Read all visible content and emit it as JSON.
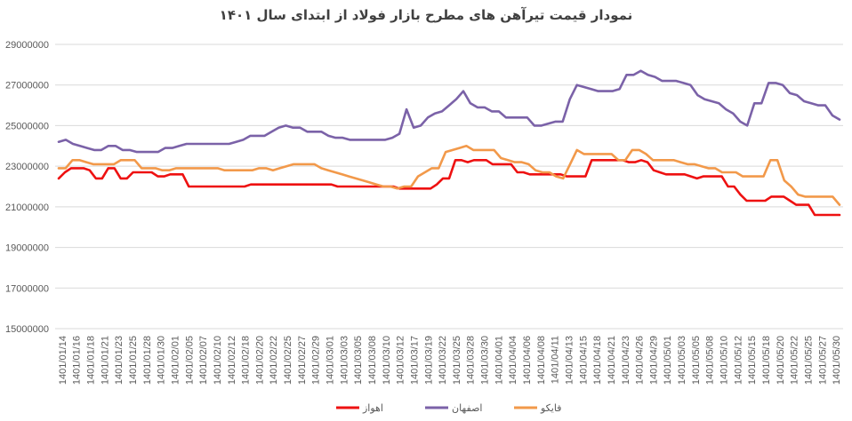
{
  "colors": {
    "ahvaz": "#ee1111",
    "esfahan": "#7b62a8",
    "faiko": "#f2994a",
    "grid": "#d9d9d9",
    "text": "#595959"
  },
  "chart_data": {
    "type": "line",
    "title": "نمودار قیمت تیرآهن های مطرح بازار فولاد از ابتدای سال ۱۴۰۱",
    "xlabel": "",
    "ylabel": "",
    "ylim": [
      15000000,
      29000000
    ],
    "yticks": [
      "15000000",
      "17000000",
      "19000000",
      "21000000",
      "23000000",
      "25000000",
      "27000000",
      "29000000"
    ],
    "grid": true,
    "legend_position": "bottom",
    "x_labels": [
      "1401/01/14",
      "1401/01/16",
      "1401/01/18",
      "1401/01/21",
      "1401/01/23",
      "1401/01/25",
      "1401/01/28",
      "1401/01/30",
      "1401/02/01",
      "1401/02/05",
      "1401/02/07",
      "1401/02/10",
      "1401/02/12",
      "1401/02/18",
      "1401/02/20",
      "1401/02/22",
      "1401/02/25",
      "1401/02/27",
      "1401/02/29",
      "1401/03/01",
      "1401/03/03",
      "1401/03/05",
      "1401/03/08",
      "1401/03/10",
      "1401/03/12",
      "1401/03/17",
      "1401/03/19",
      "1401/03/22",
      "1401/03/25",
      "1401/03/28",
      "1401/03/30",
      "1401/04/01",
      "1401/04/04",
      "1401/04/06",
      "1401/04/08",
      "1401/04/11",
      "1401/04/13",
      "1401/04/15",
      "1401/04/18",
      "1401/04/21",
      "1401/04/23",
      "1401/04/26",
      "1401/04/29",
      "1401/05/01",
      "1401/05/03",
      "1401/05/05",
      "1401/05/08",
      "1401/05/10",
      "1401/05/12",
      "1401/05/15",
      "1401/05/18",
      "1401/05/20",
      "1401/05/22",
      "1401/05/25",
      "1401/05/27",
      "1401/05/30"
    ],
    "series": [
      {
        "name": "اهواز",
        "color_key": "ahvaz",
        "values": [
          22400000,
          22700000,
          22900000,
          22900000,
          22900000,
          22800000,
          22400000,
          22400000,
          22900000,
          22900000,
          22400000,
          22400000,
          22700000,
          22700000,
          22700000,
          22700000,
          22500000,
          22500000,
          22600000,
          22600000,
          22600000,
          22000000,
          22000000,
          22000000,
          22000000,
          22000000,
          22000000,
          22000000,
          22000000,
          22000000,
          22000000,
          22100000,
          22100000,
          22100000,
          22100000,
          22100000,
          22100000,
          22100000,
          22100000,
          22100000,
          22100000,
          22100000,
          22100000,
          22100000,
          22100000,
          22000000,
          22000000,
          22000000,
          22000000,
          22000000,
          22000000,
          22000000,
          22000000,
          22000000,
          22000000,
          21900000,
          21900000,
          21900000,
          21900000,
          21900000,
          21900000,
          22100000,
          22400000,
          22400000,
          23300000,
          23300000,
          23200000,
          23300000,
          23300000,
          23300000,
          23100000,
          23100000,
          23100000,
          23100000,
          22700000,
          22700000,
          22600000,
          22600000,
          22600000,
          22600000,
          22600000,
          22600000,
          22500000,
          22500000,
          22500000,
          22500000,
          23300000,
          23300000,
          23300000,
          23300000,
          23300000,
          23300000,
          23200000,
          23200000,
          23300000,
          23200000,
          22800000,
          22700000,
          22600000,
          22600000,
          22600000,
          22600000,
          22500000,
          22400000,
          22500000,
          22500000,
          22500000,
          22500000,
          22000000,
          22000000,
          21600000,
          21300000,
          21300000,
          21300000,
          21300000,
          21500000,
          21500000,
          21500000,
          21300000,
          21100000,
          21100000,
          21100000,
          20600000,
          20600000,
          20600000,
          20600000,
          20600000
        ]
      },
      {
        "name": "اصفهان",
        "color_key": "esfahan",
        "values": [
          24200000,
          24300000,
          24100000,
          24000000,
          23900000,
          23800000,
          23800000,
          24000000,
          24000000,
          23800000,
          23800000,
          23700000,
          23700000,
          23700000,
          23700000,
          23900000,
          23900000,
          24000000,
          24100000,
          24100000,
          24100000,
          24100000,
          24100000,
          24100000,
          24100000,
          24200000,
          24300000,
          24500000,
          24500000,
          24500000,
          24700000,
          24900000,
          25000000,
          24900000,
          24900000,
          24700000,
          24700000,
          24700000,
          24500000,
          24400000,
          24400000,
          24300000,
          24300000,
          24300000,
          24300000,
          24300000,
          24300000,
          24400000,
          24600000,
          25800000,
          24900000,
          25000000,
          25400000,
          25600000,
          25700000,
          26000000,
          26300000,
          26700000,
          26100000,
          25900000,
          25900000,
          25700000,
          25700000,
          25400000,
          25400000,
          25400000,
          25400000,
          25000000,
          25000000,
          25100000,
          25200000,
          25200000,
          26300000,
          27000000,
          26900000,
          26800000,
          26700000,
          26700000,
          26700000,
          26800000,
          27500000,
          27500000,
          27700000,
          27500000,
          27400000,
          27200000,
          27200000,
          27200000,
          27100000,
          27000000,
          26500000,
          26300000,
          26200000,
          26100000,
          25800000,
          25600000,
          25200000,
          25000000,
          26100000,
          26100000,
          27100000,
          27100000,
          27000000,
          26600000,
          26500000,
          26200000,
          26100000,
          26000000,
          26000000,
          25500000,
          25300000
        ]
      },
      {
        "name": "فایکو",
        "color_key": "faiko",
        "values": [
          22900000,
          22900000,
          23300000,
          23300000,
          23200000,
          23100000,
          23100000,
          23100000,
          23100000,
          23300000,
          23300000,
          23300000,
          22900000,
          22900000,
          22900000,
          22800000,
          22800000,
          22900000,
          22900000,
          22900000,
          22900000,
          22900000,
          22900000,
          22900000,
          22800000,
          22800000,
          22800000,
          22800000,
          22800000,
          22900000,
          22900000,
          22800000,
          22900000,
          23000000,
          23100000,
          23100000,
          23100000,
          23100000,
          22900000,
          22800000,
          22700000,
          22600000,
          22500000,
          22400000,
          22300000,
          22200000,
          22100000,
          22000000,
          22000000,
          21900000,
          22000000,
          22000000,
          22500000,
          22700000,
          22900000,
          22900000,
          23700000,
          23800000,
          23900000,
          24000000,
          23800000,
          23800000,
          23800000,
          23800000,
          23400000,
          23300000,
          23200000,
          23200000,
          23100000,
          22800000,
          22700000,
          22700000,
          22500000,
          22400000,
          23100000,
          23800000,
          23600000,
          23600000,
          23600000,
          23600000,
          23600000,
          23300000,
          23300000,
          23800000,
          23800000,
          23600000,
          23300000,
          23300000,
          23300000,
          23300000,
          23200000,
          23100000,
          23100000,
          23000000,
          22900000,
          22900000,
          22700000,
          22700000,
          22700000,
          22500000,
          22500000,
          22500000,
          22500000,
          23300000,
          23300000,
          22300000,
          22000000,
          21600000,
          21500000,
          21500000,
          21500000,
          21500000,
          21500000,
          21100000
        ]
      }
    ]
  }
}
